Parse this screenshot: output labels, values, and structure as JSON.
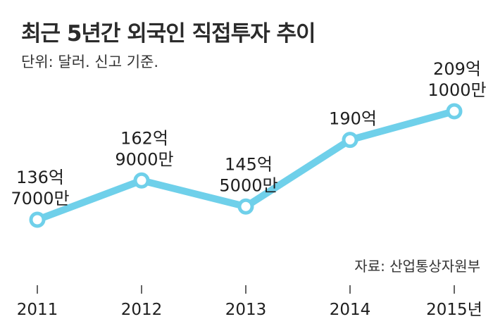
{
  "chart_data": {
    "type": "line",
    "title": "최근 5년간 외국인 직접투자 추이",
    "subtitle": "단위: 달러. 신고 기준.",
    "source": "자료: 산업통상자원부",
    "categories": [
      "2011",
      "2012",
      "2013",
      "2014",
      "2015년"
    ],
    "values": [
      136.7,
      162.9,
      145.5,
      190,
      209.1
    ],
    "value_labels": [
      [
        "136억",
        "7000만"
      ],
      [
        "162억",
        "9000만"
      ],
      [
        "145억",
        "5000만"
      ],
      [
        "190억"
      ],
      [
        "209억",
        "1000만"
      ]
    ],
    "ylim": [
      100,
      220
    ],
    "grid": false,
    "line_color": "#6fd0ea"
  }
}
